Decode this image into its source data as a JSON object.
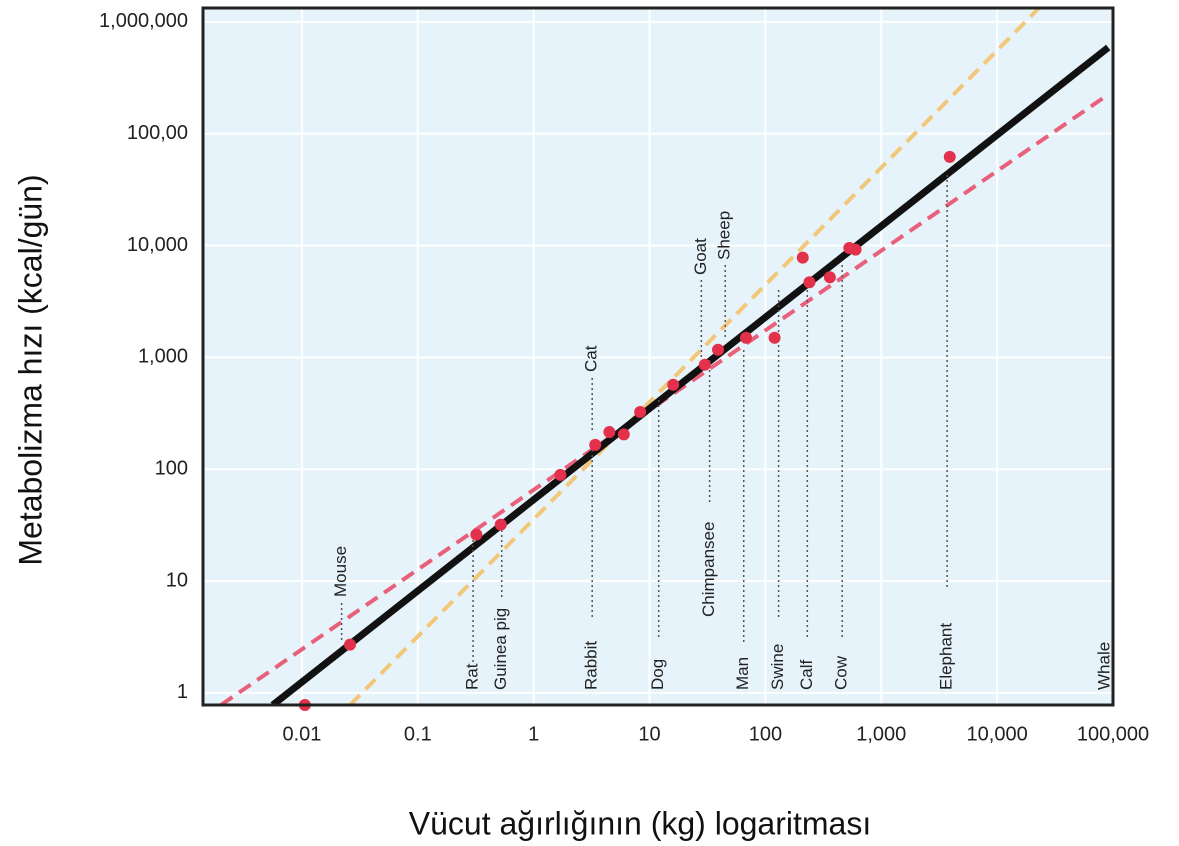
{
  "chart_data": {
    "type": "scatter",
    "x_label": "Vücut ağırlığının (kg) logaritması",
    "y_label": "Metabolizma hızı (kcal/gün)",
    "log_x": true,
    "log_y": true,
    "grid": true,
    "xlim": [
      0.0014,
      100000
    ],
    "ylim": [
      0.78,
      1330000
    ],
    "xticks": [
      0.01,
      0.1,
      1,
      10,
      100,
      {
        "value": 1000,
        "label": "1,000"
      },
      {
        "value": 10000,
        "label": "10,000"
      },
      {
        "value": 100000,
        "label": "100,000"
      }
    ],
    "yticks": [
      1,
      10,
      100,
      {
        "value": 1000,
        "label": "1,000"
      },
      {
        "value": 10000,
        "label": "10,000"
      },
      {
        "value": 100000,
        "label": "100,00"
      },
      {
        "value": 1000000,
        "label": "1,000,000"
      }
    ],
    "series": [
      {
        "type": "line",
        "style": "dashed",
        "color": "#f2c77a",
        "x": [
          0.026,
          23000
        ],
        "values": [
          0.78,
          1330000
        ]
      },
      {
        "type": "line",
        "style": "dashed",
        "color": "#e8607a",
        "x": [
          0.002,
          91000
        ],
        "values": [
          0.78,
          224000
        ]
      },
      {
        "type": "line",
        "style": "solid",
        "color": "#111111",
        "x": [
          0.0056,
          91000
        ],
        "values": [
          0.78,
          590000
        ]
      },
      {
        "type": "scatter",
        "color": "#e3304b",
        "x": [
          0.0106,
          0.026,
          0.32,
          0.52,
          1.7,
          3.4,
          4.5,
          6.0,
          8.3,
          16,
          30,
          39,
          68,
          120,
          210,
          240,
          360,
          530,
          600,
          3900
        ],
        "values": [
          0.78,
          2.7,
          26,
          32,
          89,
          165,
          215,
          205,
          325,
          570,
          860,
          1170,
          1500,
          1500,
          7800,
          4700,
          5200,
          9500,
          9200,
          62000
        ]
      }
    ],
    "annotations": [
      {
        "text": "Mouse",
        "x": 0.022
      },
      {
        "text": "Rat",
        "x": 0.3
      },
      {
        "text": "Guinea pig",
        "x": 0.53
      },
      {
        "text": "Rabbit",
        "x": 3.2
      },
      {
        "text": "Cat",
        "x": 3.2
      },
      {
        "text": "Dog",
        "x": 12
      },
      {
        "text": "Chimpansee",
        "x": 33
      },
      {
        "text": "Goat",
        "x": 28
      },
      {
        "text": "Sheep",
        "x": 45
      },
      {
        "text": "Man",
        "x": 65
      },
      {
        "text": "Swine",
        "x": 130
      },
      {
        "text": "Calf",
        "x": 230
      },
      {
        "text": "Cow",
        "x": 460
      },
      {
        "text": "Elephant",
        "x": 3700
      },
      {
        "text": "Whale",
        "x": 85000
      }
    ]
  }
}
